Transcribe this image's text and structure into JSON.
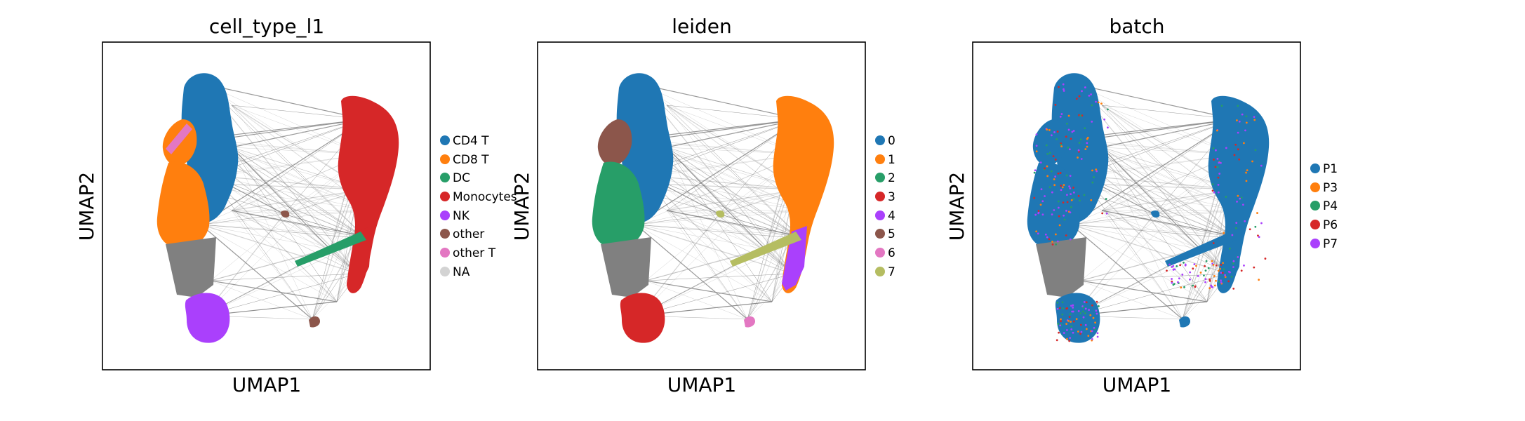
{
  "chart_data": [
    {
      "type": "scatter",
      "title": "cell_type_l1",
      "xlabel": "UMAP1",
      "ylabel": "UMAP2",
      "legend_position": "right",
      "grid": false,
      "legend": [
        {
          "label": "CD4 T",
          "color": "#1f77b4"
        },
        {
          "label": "CD8 T",
          "color": "#ff7f0e"
        },
        {
          "label": "DC",
          "color": "#279e68"
        },
        {
          "label": "Monocytes",
          "color": "#d62728"
        },
        {
          "label": "NK",
          "color": "#aa40fc"
        },
        {
          "label": "other",
          "color": "#8c564b"
        },
        {
          "label": "other T",
          "color": "#e377c2"
        },
        {
          "label": "NA",
          "color": "#d3d3d3"
        }
      ]
    },
    {
      "type": "scatter",
      "title": "leiden",
      "xlabel": "UMAP1",
      "ylabel": "UMAP2",
      "legend_position": "right",
      "grid": false,
      "legend": [
        {
          "label": "0",
          "color": "#1f77b4"
        },
        {
          "label": "1",
          "color": "#ff7f0e"
        },
        {
          "label": "2",
          "color": "#279e68"
        },
        {
          "label": "3",
          "color": "#d62728"
        },
        {
          "label": "4",
          "color": "#aa40fc"
        },
        {
          "label": "5",
          "color": "#8c564b"
        },
        {
          "label": "6",
          "color": "#e377c2"
        },
        {
          "label": "7",
          "color": "#b5bd61"
        }
      ]
    },
    {
      "type": "scatter",
      "title": "batch",
      "xlabel": "UMAP1",
      "ylabel": "UMAP2",
      "legend_position": "right",
      "grid": false,
      "legend": [
        {
          "label": "P1",
          "color": "#1f77b4"
        },
        {
          "label": "P3",
          "color": "#ff7f0e"
        },
        {
          "label": "P4",
          "color": "#279e68"
        },
        {
          "label": "P6",
          "color": "#d62728"
        },
        {
          "label": "P7",
          "color": "#aa40fc"
        }
      ]
    }
  ],
  "edge_color": "#808080"
}
